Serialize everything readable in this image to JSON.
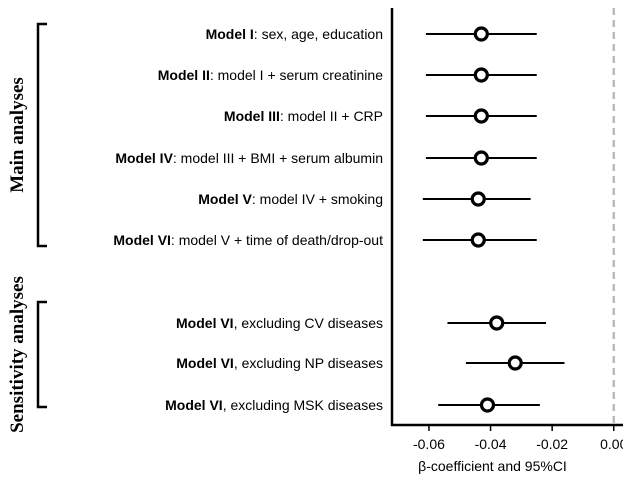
{
  "chart_data": {
    "type": "forest",
    "xlabel": "β-coefficient and 95%CI",
    "xlim": [
      -0.072,
      0.003
    ],
    "xticks": [
      {
        "value": -0.06,
        "label": "-0.06"
      },
      {
        "value": -0.04,
        "label": "-0.04"
      },
      {
        "value": -0.02,
        "label": "-0.02"
      },
      {
        "value": 0.0,
        "label": "0.00"
      }
    ],
    "reference_line": 0.0,
    "groups": [
      {
        "label": "Main analyses",
        "rows": [
          0,
          5
        ]
      },
      {
        "label": "Sensitivity analyses",
        "rows": [
          6,
          8
        ]
      }
    ],
    "rows": [
      {
        "bold": "Model I",
        "rest": ": sex, age, education",
        "estimate": -0.043,
        "lower": -0.061,
        "upper": -0.025
      },
      {
        "bold": "Model II",
        "rest": ": model I + serum creatinine",
        "estimate": -0.043,
        "lower": -0.061,
        "upper": -0.025
      },
      {
        "bold": "Model III",
        "rest": ": model II + CRP",
        "estimate": -0.043,
        "lower": -0.061,
        "upper": -0.025
      },
      {
        "bold": "Model IV",
        "rest": ": model III + BMI + serum albumin",
        "estimate": -0.043,
        "lower": -0.061,
        "upper": -0.025
      },
      {
        "bold": "Model V",
        "rest": ": model IV + smoking",
        "estimate": -0.044,
        "lower": -0.062,
        "upper": -0.027
      },
      {
        "bold": "Model VI",
        "rest": ": model V + time of death/drop-out",
        "estimate": -0.044,
        "lower": -0.062,
        "upper": -0.025
      },
      {
        "bold": "Model VI",
        "rest": ", excluding CV diseases",
        "estimate": -0.038,
        "lower": -0.054,
        "upper": -0.022
      },
      {
        "bold": "Model VI",
        "rest": ", excluding NP diseases",
        "estimate": -0.032,
        "lower": -0.048,
        "upper": -0.016
      },
      {
        "bold": "Model VI",
        "rest": ", excluding MSK diseases",
        "estimate": -0.041,
        "lower": -0.057,
        "upper": -0.024
      }
    ]
  }
}
